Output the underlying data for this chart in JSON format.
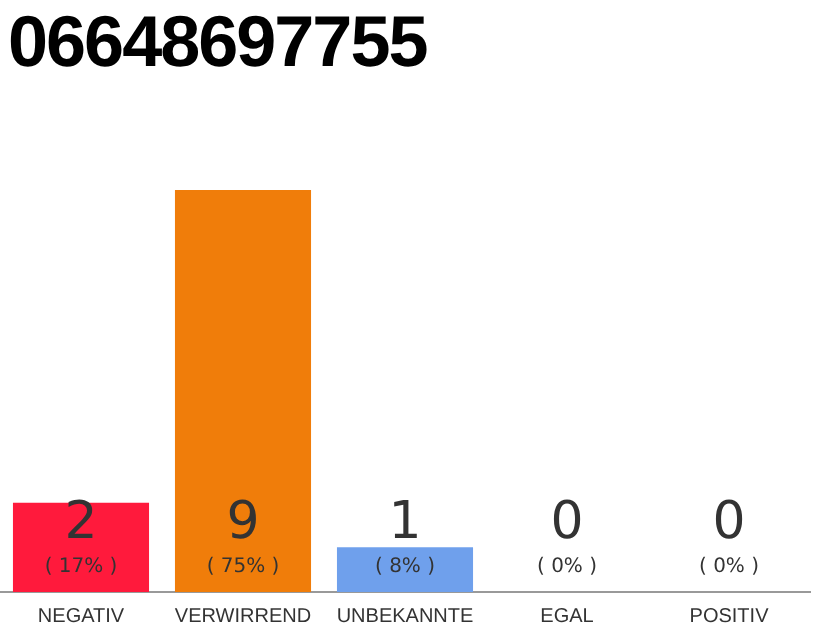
{
  "chart_data": {
    "type": "bar",
    "title": "06648697755",
    "categories": [
      "NEGATIV",
      "VERWIRREND",
      "UNBEKANNTE",
      "EGAL",
      "POSITIV"
    ],
    "values": [
      2,
      9,
      1,
      0,
      0
    ],
    "colors": [
      "#ff1a3c",
      "#f07d0a",
      "#6fa0ec",
      "#dddddd",
      "#dddddd"
    ],
    "value_labels": [
      "2\n( 17% )",
      "9\n( 75% )",
      "1\n( 8% )",
      "0\n( 0% )",
      "0\n( 0% )"
    ],
    "grid": false,
    "legend": false
  }
}
